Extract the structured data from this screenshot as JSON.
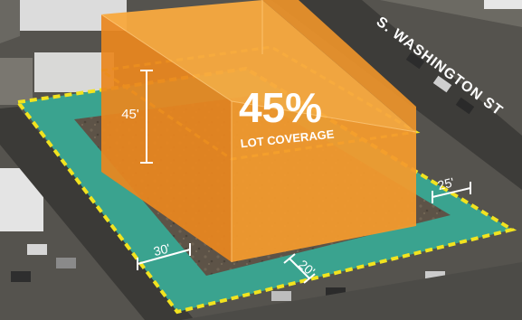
{
  "diagram": {
    "coverage_percent": "45%",
    "coverage_label": "LOT COVERAGE",
    "street_name": "S. WASHINGTON ST",
    "height_dimension": "45'",
    "setback_left": "30'",
    "setback_front": "20'",
    "setback_right": "25'"
  },
  "colors": {
    "building_front": "#f39a2e",
    "building_top": "#f7a93f",
    "building_side": "#e9861f",
    "setback_zone": "#3aa38f",
    "lot_boundary": "#f2e31f",
    "street_label": "#ffffff"
  }
}
